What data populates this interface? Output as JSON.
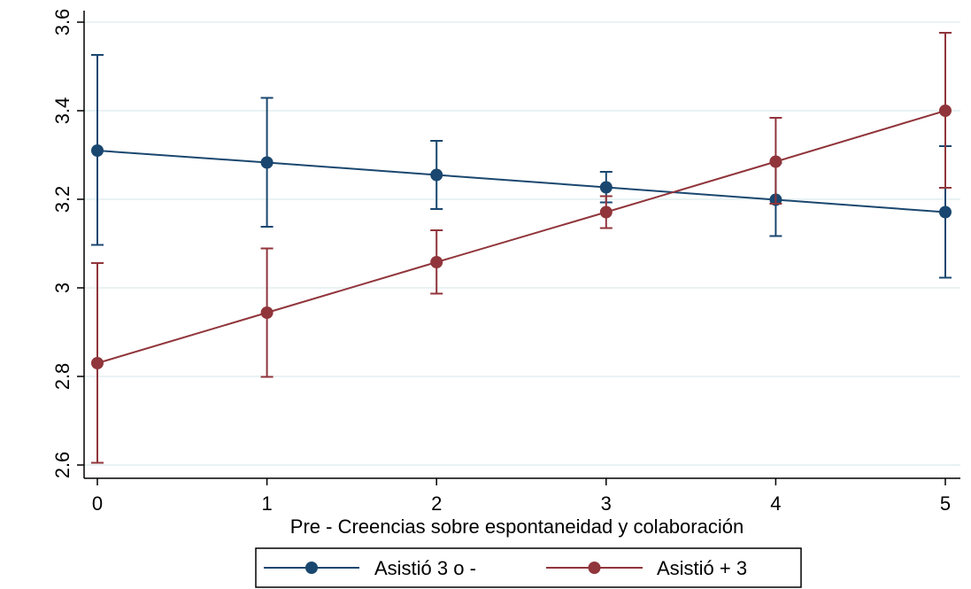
{
  "chart_data": {
    "type": "line",
    "title": "",
    "xlabel": "Pre - Creencias sobre espontaneidad y colaboración",
    "ylabel": "",
    "x": [
      0,
      1,
      2,
      3,
      4,
      5
    ],
    "x_tick_labels": [
      "0",
      "1",
      "2",
      "3",
      "4",
      "5"
    ],
    "xlim": [
      0,
      5
    ],
    "ylim": [
      2.6,
      3.6
    ],
    "y_ticks": [
      2.6,
      2.8,
      3,
      3.2,
      3.4,
      3.6
    ],
    "y_tick_labels": [
      "2.6",
      "2.8",
      "3",
      "3.2",
      "3.4",
      "3.6"
    ],
    "grid": true,
    "legend_position": "bottom",
    "error_bars": true,
    "series": [
      {
        "name": "Asistió 3 o -",
        "color": "#1a476f",
        "values": [
          3.31,
          3.283,
          3.255,
          3.227,
          3.199,
          3.171
        ],
        "ci_low": [
          3.097,
          3.138,
          3.178,
          3.193,
          3.117,
          3.023
        ],
        "ci_high": [
          3.526,
          3.429,
          3.332,
          3.262,
          3.282,
          3.32
        ]
      },
      {
        "name": "Asistió + 3",
        "color": "#90353b",
        "values": [
          2.83,
          2.944,
          3.058,
          3.171,
          3.285,
          3.4
        ],
        "ci_low": [
          2.605,
          2.799,
          2.987,
          3.135,
          3.19,
          3.226
        ],
        "ci_high": [
          3.056,
          3.089,
          3.13,
          3.207,
          3.384,
          3.576
        ]
      }
    ]
  }
}
